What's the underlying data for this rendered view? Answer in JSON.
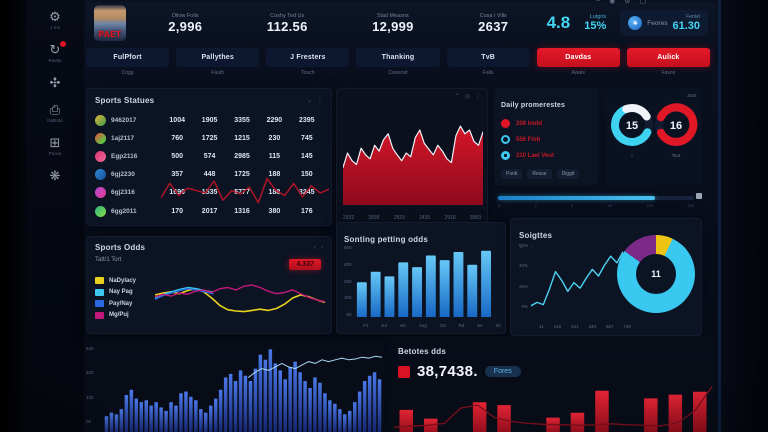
{
  "window_icons": [
    {
      "name": "menu-icon",
      "glyph": "≡"
    },
    {
      "name": "record-icon",
      "glyph": "◉"
    },
    {
      "name": "gear-icon",
      "glyph": "⚙"
    },
    {
      "name": "window-icon",
      "glyph": "▢"
    }
  ],
  "sidebar": {
    "items": [
      {
        "icon": "gear-icon",
        "glyph": "⚙",
        "label": "1 ms",
        "badge": false
      },
      {
        "icon": "refresh-icon",
        "glyph": "↻",
        "label": "Rovtto",
        "badge": true
      },
      {
        "icon": "settings-icon",
        "glyph": "✣",
        "label": "",
        "badge": false
      },
      {
        "icon": "camera-icon",
        "glyph": "⎙",
        "label": "Natitoto",
        "badge": false
      },
      {
        "icon": "grid-icon",
        "glyph": "⊞",
        "label": "Prioce",
        "badge": false
      },
      {
        "icon": "snowflake-icon",
        "glyph": "❋",
        "label": "",
        "badge": false
      }
    ]
  },
  "header": {
    "avatar_text": "PAET",
    "stats": [
      {
        "label": "Dilow Folls",
        "value": "2,996"
      },
      {
        "label": "Coshy Tod Us",
        "value": "112.56"
      },
      {
        "label": "Slad Measns",
        "value": "12,999"
      },
      {
        "label": "Cosa l Vills",
        "value": "2637"
      }
    ],
    "big_value": "4.8",
    "percent": {
      "label": "Lutgris",
      "value": "15%"
    },
    "feores": {
      "name": "Feores",
      "label": "Fentel",
      "value": "61.30"
    }
  },
  "tabs": [
    {
      "label": "FulPfort",
      "sub": "Crigg",
      "style": "dark"
    },
    {
      "label": "Pallythes",
      "sub": "Fauth",
      "style": "dark"
    },
    {
      "label": "J Fresters",
      "sub": "Touch",
      "style": "dark"
    },
    {
      "label": "Thanking",
      "sub": "Coverod",
      "style": "dark"
    },
    {
      "label": "TvB",
      "sub": "Falls",
      "style": "dark"
    },
    {
      "label": "Davdas",
      "sub": "Awats",
      "style": "red"
    },
    {
      "label": "Aulick",
      "sub": "Favos",
      "style": "red"
    }
  ],
  "controls": {
    "basic": [
      "⌄",
      "⋮"
    ],
    "area": [
      "⌃",
      "◎",
      "⋮"
    ],
    "odds": [
      "‹",
      "›"
    ]
  },
  "sports_table": {
    "title": "Sports Statues",
    "rows": [
      {
        "icon_color": "#e8b23a",
        "icon_color2": "#3a9e4a",
        "name": "9462017",
        "values": [
          "1004",
          "1905",
          "3355",
          "2290",
          "2395"
        ]
      },
      {
        "icon_color": "#e84a3a",
        "icon_color2": "#3ae84a",
        "name": "1aj2117",
        "values": [
          "760",
          "1725",
          "1215",
          "230",
          "745"
        ]
      },
      {
        "icon_color": "#d6336c",
        "icon_color2": "#f06a9a",
        "name": "Egp2116",
        "values": [
          "500",
          "574",
          "2985",
          "115",
          "145"
        ]
      },
      {
        "icon_color": "#2a8fd4",
        "icon_color2": "#1a4a9e",
        "name": "6gj2230",
        "values": [
          "357",
          "448",
          "1725",
          "188",
          "150"
        ]
      },
      {
        "icon_color": "#b04ad6",
        "icon_color2": "#e83a8a",
        "name": "6gj2316",
        "values": [
          "1690",
          "1535",
          "5777",
          "188",
          "3245"
        ]
      },
      {
        "icon_color": "#2ab58a",
        "icon_color2": "#8ae03a",
        "name": "6gg2011",
        "values": [
          "170",
          "2017",
          "1316",
          "380",
          "176"
        ]
      }
    ]
  },
  "daily": {
    "title": "Daily promerestes",
    "legend": [
      {
        "text": "208 Imdd",
        "marker": "dot-red"
      },
      {
        "text": "556 Flob",
        "marker": "ring-cyan"
      },
      {
        "text": "310 Lael Veut",
        "marker": "dot-cyan"
      }
    ],
    "buttons": [
      "Ponti",
      "Resse",
      "Diggit"
    ],
    "corner_label": "Zust",
    "gauges": [
      {
        "value": "15",
        "label": "l",
        "color": "#3cd2f0",
        "accent": "#f0f4f8",
        "gap": "right"
      },
      {
        "value": "16",
        "label": "Teut",
        "color": "#e01826",
        "accent": null,
        "gap": "left"
      }
    ],
    "slider": {
      "value_pct": 80,
      "ticks": [
        "0",
        "2",
        "5",
        "40",
        "100",
        "150"
      ]
    }
  },
  "odds": {
    "title": "Sports Odds",
    "subtitle": "Tatt/1 Tort",
    "badge": "4.337",
    "legend": [
      {
        "label": "NaDylacy",
        "color": "#e8d21e"
      },
      {
        "label": "Nay Pag",
        "color": "#3cc8f0"
      },
      {
        "label": "Pay/Nay",
        "color": "#2a6ae0"
      },
      {
        "label": "Mg/Puj",
        "color": "#c2187a"
      }
    ]
  },
  "betting": {
    "title": "Betotes dds",
    "value": "38,7438.",
    "pill": "Fores"
  },
  "chart_data": [
    {
      "id": "table-spark",
      "type": "line",
      "series": [
        {
          "name": "trend",
          "color": "#c01424",
          "values": [
            40,
            70,
            45,
            60,
            55,
            50,
            75,
            35,
            55,
            48,
            62,
            30,
            80,
            55,
            45,
            70,
            42,
            65,
            50,
            58
          ]
        }
      ],
      "ylim": [
        0,
        100
      ]
    },
    {
      "id": "area-trend",
      "type": "area",
      "stroke": "#eef2f8",
      "fill_top": "#d41628",
      "fill_bottom": "#8e0a1e",
      "x_labels": [
        "2932",
        "2838",
        "2833",
        "2435",
        "2918",
        "3083"
      ],
      "values": [
        35,
        50,
        42,
        38,
        55,
        48,
        44,
        58,
        52,
        64,
        70,
        55,
        48,
        42,
        50,
        46,
        66,
        74,
        60,
        54,
        48,
        58,
        52,
        44,
        40,
        68,
        78,
        70,
        74,
        62,
        58,
        72
      ],
      "ylim": [
        0,
        100
      ]
    },
    {
      "id": "odds-lines",
      "type": "line",
      "series": [
        {
          "name": "NaDylacy",
          "color": "#e8d21e",
          "values": [
            55,
            58,
            60,
            57,
            62,
            65,
            60,
            50,
            38,
            31,
            29,
            28,
            30,
            32,
            30,
            33,
            40,
            50,
            55,
            52,
            47,
            43
          ]
        },
        {
          "name": "Nay Pag",
          "color": "#3cc8f0",
          "values": [
            50,
            56,
            60,
            64,
            67,
            65,
            62,
            60
          ],
          "x_end": 0.34
        },
        {
          "name": "Pay/Nay",
          "color": "#2a6ae0",
          "values": [
            48,
            54,
            58,
            62,
            65,
            63,
            60,
            57
          ],
          "x_end": 0.34
        },
        {
          "name": "Mg/Puj",
          "color": "#c2187a",
          "values": [
            52,
            56,
            53,
            58,
            56,
            61,
            63,
            59,
            65,
            67,
            63,
            69,
            71,
            67,
            61,
            57,
            59,
            63,
            57,
            51,
            47,
            44
          ]
        }
      ],
      "ylim": [
        0,
        100
      ]
    },
    {
      "id": "blue-bars",
      "type": "bar",
      "title": "Sonting petting odds",
      "color_top": "#66c8f6",
      "color_bottom": "#1565c4",
      "y_ticks": [
        "550",
        "400",
        "250",
        "100",
        "00"
      ],
      "x_labels": [
        "Fri",
        "Jul",
        "mb",
        "Aug",
        "Od",
        "Rd",
        "Se",
        "Sb"
      ],
      "values": [
        300,
        390,
        350,
        470,
        430,
        530,
        490,
        560,
        450,
        570
      ],
      "ylim": [
        0,
        620
      ]
    },
    {
      "id": "stats-line",
      "type": "line",
      "title": "Soigttes",
      "y_ticks": [
        "50%",
        "40%",
        "25%",
        "0%"
      ],
      "x_labels": [
        "11",
        "140",
        "441",
        "440",
        "567",
        "748"
      ],
      "series": [
        {
          "name": "Soigttes",
          "color": "#4cd4f2",
          "values": [
            3,
            6,
            4,
            18,
            34,
            26,
            16,
            24,
            19,
            28,
            36,
            30,
            40,
            48,
            42,
            52
          ]
        }
      ],
      "ylim": [
        0,
        60
      ]
    },
    {
      "id": "stats-donut",
      "type": "donut",
      "center": "11",
      "slices": [
        {
          "value": 7,
          "color": "#eec412"
        },
        {
          "value": 78,
          "color": "#38c8f0"
        },
        {
          "value": 15,
          "color": "#7c2a88"
        }
      ]
    },
    {
      "id": "histogram",
      "type": "bar",
      "color_top": "#4a78e8",
      "color_bottom": "#15246e",
      "y_ticks": [
        "540",
        "320",
        "120",
        "00"
      ],
      "values": [
        18,
        22,
        20,
        26,
        42,
        48,
        38,
        34,
        36,
        30,
        34,
        28,
        24,
        34,
        30,
        44,
        46,
        40,
        36,
        26,
        22,
        30,
        38,
        48,
        62,
        66,
        58,
        70,
        64,
        58,
        72,
        88,
        82,
        94,
        78,
        70,
        60,
        74,
        80,
        68,
        58,
        50,
        62,
        56,
        44,
        36,
        32,
        26,
        20,
        24,
        34,
        46,
        58,
        64,
        68,
        60
      ],
      "line": {
        "color": "#a8d8f4",
        "x_start": 0.52,
        "values": [
          62,
          68,
          72,
          70,
          74,
          78,
          74,
          72,
          76,
          80,
          78,
          82,
          80,
          82,
          84,
          82,
          83,
          85,
          84,
          86,
          85
        ]
      },
      "ylim": [
        0,
        100
      ]
    },
    {
      "id": "red-bars",
      "type": "bar",
      "color_top": "#e22434",
      "color_bottom": "#8e0c1a",
      "values": [
        46,
        28,
        0,
        62,
        56,
        0,
        30,
        40,
        86,
        0,
        70,
        78,
        84
      ],
      "line": {
        "color": "#7e0e1c",
        "values": [
          10,
          12,
          14,
          18,
          50,
          56,
          30,
          22,
          18,
          16,
          15,
          14,
          15,
          17,
          15,
          14,
          13,
          20,
          45,
          95
        ]
      },
      "ylim": [
        0,
        100
      ]
    }
  ]
}
